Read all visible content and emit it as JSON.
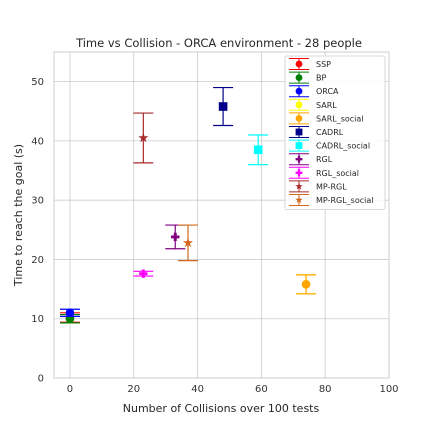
{
  "chart_data": {
    "type": "scatter",
    "title": "Time vs Collision - ORCA environment - 28 people",
    "xlabel": "Number of Collisions over 100 tests",
    "ylabel": "Time to reach the goal (s)",
    "xlim": [
      -5,
      100
    ],
    "ylim": [
      0,
      55
    ],
    "xticks": [
      0,
      20,
      40,
      60,
      80,
      100
    ],
    "yticks": [
      0,
      10,
      20,
      30,
      40,
      50
    ],
    "grid": true,
    "legend_position": "top-right",
    "series": [
      {
        "name": "SSP",
        "color": "#ff0000",
        "marker": "circle",
        "x": 0,
        "y": 10.2,
        "err": 0.8
      },
      {
        "name": "BP",
        "color": "#008000",
        "marker": "circle",
        "x": 0,
        "y": 10.0,
        "err": 0.7
      },
      {
        "name": "ORCA",
        "color": "#0000ff",
        "marker": "circle",
        "x": 0,
        "y": 11.0,
        "err": 0.6
      },
      {
        "name": "SARL",
        "color": "#ffff00",
        "marker": "circle",
        "x": 74,
        "y": 15.8,
        "err": 1.6
      },
      {
        "name": "SARL_social",
        "color": "#ffa500",
        "marker": "circle",
        "x": 74,
        "y": 15.8,
        "err": 1.6
      },
      {
        "name": "CADRL",
        "color": "#00008b",
        "marker": "square",
        "x": 48,
        "y": 45.8,
        "err": 3.2
      },
      {
        "name": "CADRL_social",
        "color": "#00ffff",
        "marker": "square",
        "x": 59,
        "y": 38.5,
        "err": 2.5
      },
      {
        "name": "RGL",
        "color": "#800080",
        "marker": "plus",
        "x": 33,
        "y": 23.8,
        "err": 2.0
      },
      {
        "name": "RGL_social",
        "color": "#ff00ff",
        "marker": "plus",
        "x": 23,
        "y": 17.6,
        "err": 0.4
      },
      {
        "name": "MP-RGL",
        "color": "#a52a2a",
        "marker": "star",
        "x": 23,
        "y": 40.5,
        "err": 4.2
      },
      {
        "name": "MP-RGL_social",
        "color": "#d2691e",
        "marker": "star",
        "x": 37,
        "y": 22.8,
        "err": 3.0
      }
    ]
  }
}
